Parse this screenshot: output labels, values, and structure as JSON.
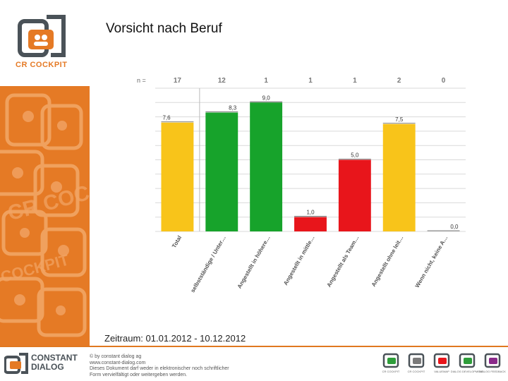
{
  "title": "Vorsicht nach Beruf",
  "period": "Zeitraum: 01.01.2012 - 10.12.2012",
  "brand": {
    "logo_text": "CR COCKPIT",
    "footer_logo": [
      "CONSTANT",
      "DIALOG"
    ],
    "orange": "#e57a25",
    "gray": "#4a5258"
  },
  "footer": {
    "lines": [
      "© by constant dialog ag",
      "www.constant-dialog.com",
      "Dieses Dokument darf weder in elektronischer noch schriftlicher",
      "Form vervielfältigt oder weitergeben werden."
    ],
    "product_labels": [
      "CR COCKPIT",
      "CR COCKPIT",
      "VALUEMAP",
      "DIALOG DEVELOPMENT",
      "DIALOG FEEDBACK"
    ]
  },
  "chart_data": {
    "type": "bar",
    "n_label": "n =",
    "n_values": [
      "17",
      "12",
      "1",
      "1",
      "1",
      "2",
      "0"
    ],
    "categories": [
      "Total",
      "selbstständige / Unter…",
      "Angestellt in höhere…",
      "Angestellt in mittle…",
      "Angestellt als Team…",
      "Angestellt ohne leit…",
      "Wenn nicht, keine A…"
    ],
    "values": [
      7.6,
      8.3,
      9.0,
      1.0,
      5.0,
      7.5,
      0.0
    ],
    "value_labels": [
      "7,6",
      "8,3",
      "9,0",
      "1,0",
      "5,0",
      "7,5",
      "0,0"
    ],
    "colors": [
      "#f8c41a",
      "#17a32b",
      "#17a32b",
      "#e8151b",
      "#e8151b",
      "#f8c41a",
      "#f8c41a"
    ],
    "ylim": [
      0,
      10
    ],
    "grid": true,
    "legend": "none"
  }
}
